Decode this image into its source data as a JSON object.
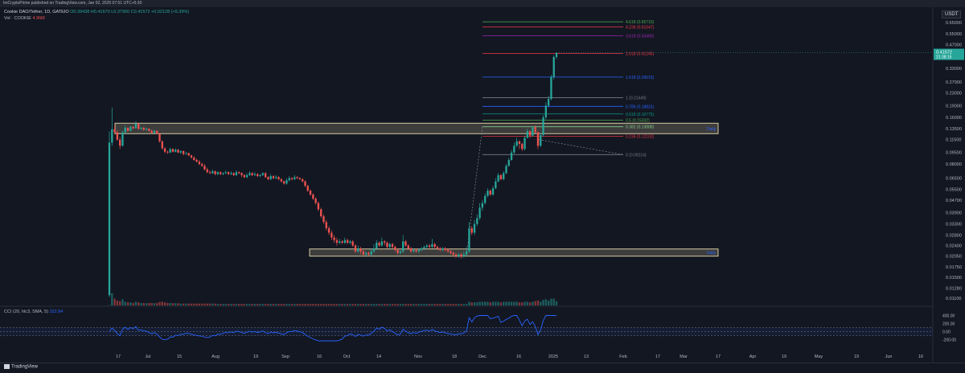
{
  "header": {
    "text": "ImCryptoPrime published on TradingView.com, Jan 02, 2025 07:51 UTC+5:30"
  },
  "symbol": {
    "name": "Cookie DAO/Tether, 1D, GATEIO",
    "ohlc": "O0.39438 H0.41670 L0.37900 C0.41572 +0.02128 (+5.39%)"
  },
  "volume": {
    "label": "Vol · COOKIE",
    "value": "4.96M"
  },
  "currency": "USDT",
  "cci": {
    "label": "CCI (20, hlc3, SMA, 5)",
    "value": "322.84"
  },
  "footer": {
    "logo": "TradingView"
  },
  "colors": {
    "bg": "#131722",
    "up": "#26a69a",
    "down": "#ef5350",
    "cci": "#2962ff",
    "zone": "#d4c9a0"
  },
  "chart_data": {
    "type": "candlestick",
    "y_axis_labels": [
      "0.65000",
      "0.55000",
      "0.47000",
      "0.39000",
      "0.33000",
      "0.27000",
      "0.23000",
      "0.19000",
      "0.16000",
      "0.13500",
      "0.11500",
      "0.09500",
      "0.08000",
      "0.06500",
      "0.05500",
      "0.04700",
      "0.03900",
      "0.03300",
      "0.02800",
      "0.02400",
      "0.02050",
      "0.01750",
      "0.01500",
      "0.01280",
      "0.01100"
    ],
    "cci_axis_labels": [
      "400.00",
      "200.00",
      "0.00",
      "-200.00"
    ],
    "cci_ylim": [
      -250,
      450
    ],
    "x_axis_labels": [
      "17",
      "Jul",
      "15",
      "Aug",
      "19",
      "Sep",
      "16",
      "Oct",
      "14",
      "Nov",
      "18",
      "Dec",
      "16",
      "2025",
      "13",
      "Feb",
      "17",
      "Mar",
      "17",
      "Apr",
      "19",
      "May",
      "19",
      "Jun",
      "16"
    ],
    "y_scale": "log",
    "last_price": "0.41572",
    "countdown": "21:38:15",
    "fib_levels": [
      {
        "label": "4.618 (0.65715)",
        "price": 0.657,
        "color": "#4caf50"
      },
      {
        "label": "4.236 (0.61047)",
        "price": 0.61,
        "color": "#f23645"
      },
      {
        "label": "3.618 (0.53489)",
        "price": 0.535,
        "color": "#9c27b0"
      },
      {
        "label": "2.618 (0.41245)",
        "price": 0.412,
        "color": "#f23645"
      },
      {
        "label": "1.618 (0.29015)",
        "price": 0.29,
        "color": "#2962ff"
      },
      {
        "label": "1 (0.21449)",
        "price": 0.214,
        "color": "#787b86"
      },
      {
        "label": "0.786 (0.18831)",
        "price": 0.188,
        "color": "#2962ff"
      },
      {
        "label": "0.618 (0.16775)",
        "price": 0.168,
        "color": "#089981"
      },
      {
        "label": "0.5 (0.15332)",
        "price": 0.153,
        "color": "#4caf50"
      },
      {
        "label": "0.382 (0.13888)",
        "price": 0.139,
        "color": "#81c784"
      },
      {
        "label": "0.236 (0.12102)",
        "price": 0.121,
        "color": "#f23645"
      },
      {
        "label": "0 (0.09214)",
        "price": 0.0921,
        "color": "#787b86"
      }
    ],
    "zones": [
      {
        "label": "Daily",
        "low": 0.1255,
        "high": 0.1465
      },
      {
        "label": "Daily",
        "low": 0.0205,
        "high": 0.0228
      }
    ],
    "candles": [
      [
        0.0115,
        0.11,
        0.13,
        0.0112,
        "0.035"
      ],
      [
        0.11,
        0.134,
        0.185,
        0.105,
        "1.0"
      ],
      [
        0.134,
        0.128,
        0.142,
        0.124,
        "0.55"
      ],
      [
        0.128,
        0.115,
        0.132,
        0.113,
        "0.4"
      ],
      [
        0.115,
        0.105,
        0.12,
        0.1,
        "0.35"
      ],
      [
        0.105,
        0.128,
        0.131,
        0.104,
        "0.5"
      ],
      [
        0.128,
        0.137,
        0.142,
        0.126,
        "0.3"
      ],
      [
        0.137,
        0.131,
        0.138,
        0.129,
        "0.25"
      ],
      [
        0.131,
        0.139,
        0.141,
        0.13,
        "0.25"
      ],
      [
        0.139,
        0.136,
        0.14,
        0.134,
        "0.2"
      ],
      [
        0.136,
        0.146,
        0.151,
        0.135,
        "0.3"
      ],
      [
        0.146,
        0.135,
        0.147,
        0.133,
        "0.25"
      ],
      [
        0.135,
        0.137,
        0.138,
        0.133,
        "0.2"
      ],
      [
        0.137,
        0.133,
        0.138,
        0.131,
        "0.2"
      ],
      [
        0.133,
        0.135,
        0.137,
        0.131,
        "0.18"
      ],
      [
        0.135,
        0.131,
        0.136,
        0.129,
        "0.2"
      ],
      [
        0.131,
        0.127,
        0.133,
        0.125,
        "0.2"
      ],
      [
        0.127,
        0.131,
        0.133,
        0.126,
        "0.18"
      ],
      [
        0.131,
        0.125,
        0.132,
        0.124,
        "0.2"
      ],
      [
        0.125,
        0.112,
        0.127,
        0.11,
        "0.28"
      ],
      [
        0.112,
        0.101,
        0.114,
        0.099,
        "0.3"
      ],
      [
        0.101,
        0.096,
        0.103,
        0.094,
        "0.25"
      ],
      [
        0.096,
        0.095,
        0.098,
        0.093,
        "0.2"
      ],
      [
        0.095,
        0.1,
        0.102,
        0.094,
        "0.2"
      ],
      [
        0.1,
        0.096,
        0.101,
        0.095,
        "0.18"
      ],
      [
        0.096,
        0.099,
        0.101,
        0.095,
        "0.18"
      ],
      [
        0.099,
        0.095,
        0.1,
        0.094,
        "0.18"
      ],
      [
        0.095,
        0.097,
        0.098,
        0.093,
        "0.15"
      ],
      [
        0.097,
        0.093,
        0.098,
        0.091,
        "0.15"
      ],
      [
        0.093,
        0.094,
        0.096,
        0.092,
        "0.15"
      ],
      [
        0.094,
        0.091,
        0.095,
        0.09,
        "0.15"
      ],
      [
        0.091,
        0.088,
        0.092,
        0.087,
        "0.15"
      ],
      [
        0.088,
        0.085,
        0.09,
        0.084,
        "0.15"
      ],
      [
        0.085,
        0.083,
        0.087,
        0.082,
        "0.15"
      ],
      [
        0.083,
        0.08,
        0.085,
        0.079,
        "0.15"
      ],
      [
        0.08,
        0.078,
        0.082,
        0.077,
        "0.15"
      ],
      [
        0.078,
        0.074,
        0.08,
        0.073,
        "0.15"
      ],
      [
        0.074,
        0.071,
        0.076,
        0.07,
        "0.15"
      ],
      [
        0.071,
        0.07,
        0.073,
        0.069,
        "0.15"
      ],
      [
        0.07,
        0.072,
        0.074,
        0.069,
        "0.15"
      ],
      [
        0.072,
        0.069,
        0.073,
        0.068,
        "0.15"
      ],
      [
        0.069,
        0.071,
        0.072,
        0.068,
        "0.12"
      ],
      [
        0.071,
        0.069,
        0.072,
        0.068,
        "0.12"
      ],
      [
        0.069,
        0.07,
        0.071,
        0.068,
        "0.12"
      ],
      [
        0.07,
        0.071,
        0.073,
        0.069,
        "0.12"
      ],
      [
        0.071,
        0.069,
        0.072,
        0.068,
        "0.12"
      ],
      [
        0.069,
        0.07,
        0.072,
        0.068,
        "0.12"
      ],
      [
        0.07,
        0.068,
        0.071,
        0.067,
        "0.12"
      ],
      [
        0.068,
        0.071,
        0.073,
        0.067,
        "0.12"
      ],
      [
        0.071,
        0.07,
        0.072,
        0.069,
        "0.12"
      ],
      [
        0.07,
        0.068,
        0.071,
        0.066,
        "0.12"
      ],
      [
        0.068,
        0.066,
        0.069,
        0.065,
        "0.12"
      ],
      [
        0.066,
        0.068,
        0.07,
        0.065,
        "0.12"
      ],
      [
        0.068,
        0.07,
        0.072,
        0.067,
        "0.12"
      ],
      [
        0.07,
        0.068,
        0.071,
        0.067,
        "0.12"
      ],
      [
        0.068,
        0.069,
        0.071,
        0.067,
        "0.12"
      ],
      [
        0.069,
        0.067,
        0.07,
        0.066,
        "0.12"
      ],
      [
        0.067,
        0.068,
        0.069,
        0.066,
        "0.12"
      ],
      [
        0.068,
        0.07,
        0.071,
        0.067,
        "0.12"
      ],
      [
        0.07,
        0.066,
        0.071,
        0.065,
        "0.12"
      ],
      [
        0.066,
        0.064,
        0.067,
        0.063,
        "0.12"
      ],
      [
        0.064,
        0.067,
        0.069,
        0.063,
        "0.12"
      ],
      [
        0.067,
        0.065,
        0.068,
        0.064,
        "0.12"
      ],
      [
        0.065,
        0.066,
        0.068,
        0.064,
        "0.12"
      ],
      [
        0.066,
        0.064,
        0.067,
        0.063,
        "0.12"
      ],
      [
        0.064,
        0.062,
        0.065,
        0.061,
        "0.12"
      ],
      [
        0.062,
        0.06,
        0.063,
        0.059,
        "0.12"
      ],
      [
        0.06,
        0.063,
        0.065,
        0.059,
        "0.12"
      ],
      [
        0.063,
        0.065,
        0.067,
        0.062,
        "0.12"
      ],
      [
        0.065,
        0.064,
        0.066,
        0.063,
        "0.12"
      ],
      [
        0.064,
        0.066,
        0.068,
        0.063,
        "0.12"
      ],
      [
        0.066,
        0.065,
        0.067,
        0.064,
        "0.12"
      ],
      [
        0.065,
        0.064,
        0.066,
        0.063,
        "0.12"
      ],
      [
        0.064,
        0.062,
        0.065,
        0.061,
        "0.12"
      ],
      [
        0.062,
        0.058,
        0.063,
        0.057,
        "0.12"
      ],
      [
        0.058,
        0.054,
        0.059,
        0.053,
        "0.12"
      ],
      [
        0.054,
        0.051,
        0.055,
        0.05,
        "0.12"
      ],
      [
        0.051,
        0.048,
        0.052,
        0.047,
        "0.12"
      ],
      [
        0.048,
        0.045,
        0.049,
        0.044,
        "0.12"
      ],
      [
        0.045,
        0.041,
        0.046,
        0.04,
        "0.12"
      ],
      [
        0.041,
        0.037,
        0.042,
        0.036,
        "0.12"
      ],
      [
        0.037,
        0.034,
        0.038,
        0.033,
        "0.12"
      ],
      [
        0.034,
        0.031,
        0.035,
        0.03,
        "0.12"
      ],
      [
        0.031,
        0.029,
        0.032,
        0.028,
        "0.12"
      ],
      [
        0.029,
        0.027,
        0.03,
        0.026,
        "0.12"
      ],
      [
        0.027,
        0.026,
        0.028,
        0.025,
        "0.12"
      ],
      [
        0.026,
        0.025,
        0.027,
        0.024,
        "0.12"
      ],
      [
        0.025,
        0.0255,
        0.0265,
        0.0245,
        "0.12"
      ],
      [
        0.0255,
        0.025,
        0.026,
        0.0245,
        "0.12"
      ],
      [
        0.025,
        0.026,
        0.027,
        0.0245,
        "0.12"
      ],
      [
        0.026,
        0.025,
        0.0265,
        0.0245,
        "0.12"
      ],
      [
        0.025,
        0.0255,
        0.026,
        0.0245,
        "0.12"
      ],
      [
        0.0255,
        0.024,
        0.026,
        0.0235,
        "0.12"
      ],
      [
        0.024,
        0.022,
        0.0245,
        0.0215,
        "0.12"
      ],
      [
        0.022,
        0.023,
        0.024,
        0.0215,
        "0.12"
      ],
      [
        0.023,
        0.022,
        0.0235,
        0.021,
        "0.12"
      ],
      [
        0.022,
        0.021,
        0.0225,
        0.0205,
        "0.12"
      ],
      [
        0.021,
        0.0215,
        0.022,
        0.0205,
        "0.12"
      ],
      [
        0.0215,
        0.021,
        0.022,
        0.0205,
        "0.12"
      ],
      [
        0.021,
        0.022,
        0.023,
        0.0205,
        "0.12"
      ],
      [
        0.022,
        0.023,
        0.0245,
        0.0215,
        "0.12"
      ],
      [
        0.023,
        0.025,
        0.026,
        0.0225,
        "0.12"
      ],
      [
        0.025,
        0.024,
        0.0255,
        0.0235,
        "0.12"
      ],
      [
        0.024,
        0.0255,
        0.027,
        0.0235,
        "0.12"
      ],
      [
        0.0255,
        0.025,
        0.026,
        0.024,
        "0.12"
      ],
      [
        0.025,
        0.0235,
        0.0255,
        0.023,
        "0.12"
      ],
      [
        0.0235,
        0.0245,
        0.025,
        0.023,
        "0.12"
      ],
      [
        0.0245,
        0.0235,
        0.025,
        0.023,
        "0.12"
      ],
      [
        0.0235,
        0.0225,
        0.024,
        0.022,
        "0.12"
      ],
      [
        0.0225,
        0.0215,
        0.023,
        0.021,
        "0.12"
      ],
      [
        0.0215,
        0.022,
        0.0225,
        0.021,
        "0.12"
      ],
      [
        0.022,
        0.0255,
        0.028,
        0.0215,
        "0.12"
      ],
      [
        0.0255,
        0.024,
        0.026,
        0.0235,
        "0.12"
      ],
      [
        0.024,
        0.023,
        0.0245,
        0.0225,
        "0.12"
      ],
      [
        0.023,
        0.022,
        0.0235,
        0.0215,
        "0.12"
      ],
      [
        0.022,
        0.0225,
        0.023,
        0.0215,
        "0.12"
      ],
      [
        0.0225,
        0.022,
        0.023,
        0.0215,
        "0.12"
      ],
      [
        0.022,
        0.0225,
        0.023,
        0.0215,
        "0.12"
      ],
      [
        0.0225,
        0.023,
        0.0235,
        0.022,
        "0.12"
      ],
      [
        0.023,
        0.0235,
        0.024,
        0.0225,
        "0.12"
      ],
      [
        0.0235,
        0.024,
        0.0245,
        0.023,
        "0.12"
      ],
      [
        0.024,
        0.0235,
        0.0245,
        0.023,
        "0.12"
      ],
      [
        0.0235,
        0.0245,
        0.0265,
        0.023,
        "0.12"
      ],
      [
        0.0245,
        0.0235,
        0.025,
        0.023,
        "0.12"
      ],
      [
        0.0235,
        0.023,
        0.024,
        0.0225,
        "0.12"
      ],
      [
        0.023,
        0.0225,
        0.0235,
        0.022,
        "0.12"
      ],
      [
        0.0225,
        0.023,
        0.0235,
        0.022,
        "0.12"
      ],
      [
        0.023,
        0.0225,
        0.0235,
        0.022,
        "0.12"
      ],
      [
        0.0225,
        0.022,
        0.023,
        0.0215,
        "0.12"
      ],
      [
        0.022,
        0.0215,
        0.0225,
        0.021,
        "0.12"
      ],
      [
        0.0215,
        0.021,
        0.022,
        0.0205,
        "0.12"
      ],
      [
        0.021,
        0.0205,
        0.0215,
        0.02,
        "0.12"
      ],
      [
        0.0205,
        0.021,
        0.0215,
        0.02,
        "0.12"
      ],
      [
        0.021,
        0.0205,
        0.0215,
        0.0198,
        "0.12"
      ],
      [
        0.0205,
        0.021,
        0.022,
        0.02,
        "0.12"
      ],
      [
        0.021,
        0.022,
        0.0235,
        0.0205,
        "0.12"
      ],
      [
        0.022,
        0.031,
        0.034,
        0.0215,
        "0.3"
      ],
      [
        0.031,
        0.029,
        0.032,
        0.028,
        "0.25"
      ],
      [
        0.029,
        0.033,
        0.035,
        0.028,
        "0.25"
      ],
      [
        0.033,
        0.036,
        0.038,
        0.032,
        "0.25"
      ],
      [
        0.036,
        0.042,
        0.045,
        0.035,
        "0.3"
      ],
      [
        0.042,
        0.045,
        0.047,
        0.04,
        "0.3"
      ],
      [
        0.045,
        0.05,
        0.052,
        0.044,
        "0.3"
      ],
      [
        0.05,
        0.054,
        0.056,
        0.049,
        "0.3"
      ],
      [
        0.054,
        0.051,
        0.055,
        0.05,
        "0.25"
      ],
      [
        0.051,
        0.056,
        0.058,
        0.05,
        "0.3"
      ],
      [
        0.056,
        0.062,
        0.065,
        0.055,
        "0.3"
      ],
      [
        0.062,
        0.068,
        0.07,
        0.061,
        "0.3"
      ],
      [
        0.068,
        0.064,
        0.069,
        0.063,
        "0.25"
      ],
      [
        0.064,
        0.07,
        0.072,
        0.063,
        "0.3"
      ],
      [
        0.07,
        0.078,
        0.08,
        0.069,
        "0.3"
      ],
      [
        0.078,
        0.085,
        0.088,
        0.077,
        "0.3"
      ],
      [
        0.085,
        0.095,
        0.099,
        0.084,
        "0.3"
      ],
      [
        0.095,
        0.105,
        0.11,
        0.093,
        "0.3"
      ],
      [
        0.105,
        0.112,
        0.118,
        0.103,
        "0.3"
      ],
      [
        0.112,
        0.108,
        0.114,
        0.1,
        "0.25"
      ],
      [
        0.108,
        0.1,
        0.11,
        0.097,
        "0.25"
      ],
      [
        0.1,
        0.118,
        0.122,
        0.098,
        "0.3"
      ],
      [
        0.118,
        0.13,
        0.135,
        0.117,
        "0.3"
      ],
      [
        0.13,
        0.122,
        0.132,
        0.118,
        "0.25"
      ],
      [
        0.122,
        0.138,
        0.14,
        0.12,
        "0.3"
      ],
      [
        0.138,
        0.128,
        0.142,
        0.126,
        "0.35"
      ],
      [
        0.128,
        0.105,
        0.13,
        0.1,
        "0.4"
      ],
      [
        0.105,
        0.123,
        0.126,
        0.103,
        "0.3"
      ],
      [
        0.123,
        0.16,
        0.165,
        0.12,
        "0.45"
      ],
      [
        0.16,
        0.19,
        0.2,
        0.155,
        "0.5"
      ],
      [
        0.19,
        0.21,
        0.22,
        0.185,
        "0.4"
      ],
      [
        0.21,
        0.29,
        0.3,
        0.205,
        "0.55"
      ],
      [
        0.29,
        0.39,
        0.4,
        0.28,
        "0.55"
      ],
      [
        0.39,
        0.41572,
        0.4167,
        0.379,
        "0.35"
      ]
    ]
  }
}
